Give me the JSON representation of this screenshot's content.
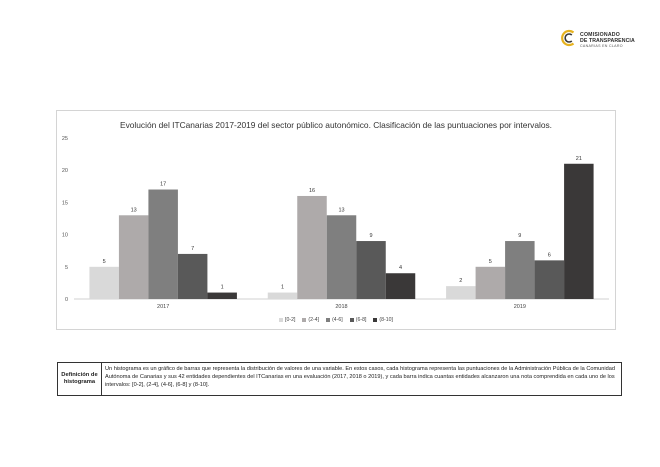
{
  "header": {
    "logo_line1": "COMISIONADO",
    "logo_line2": "DE TRANSPARENCIA",
    "logo_line3": "CANARIAS EN CLARO",
    "logo_colors": {
      "gold": "#e6b21f",
      "dark": "#3a3a3a"
    }
  },
  "chart_data": {
    "type": "bar",
    "title": "Evolución del ITCanarias 2017-2019 del sector público autonómico. Clasificación de las puntuaciones por intervalos.",
    "categories": [
      "2017",
      "2018",
      "2019"
    ],
    "series": [
      {
        "name": "[0-2]",
        "color": "#d9d9d9",
        "values": [
          5,
          1,
          2
        ]
      },
      {
        "name": "(2-4]",
        "color": "#aeaaaa",
        "values": [
          13,
          16,
          5
        ]
      },
      {
        "name": "(4-6]",
        "color": "#7f7f7f",
        "values": [
          17,
          13,
          9
        ]
      },
      {
        "name": "(6-8]",
        "color": "#595959",
        "values": [
          7,
          9,
          6
        ]
      },
      {
        "name": "(8-10]",
        "color": "#3a3838",
        "values": [
          1,
          4,
          21
        ]
      }
    ],
    "ylim": [
      0,
      25
    ],
    "yticks": [
      0,
      5,
      10,
      15,
      20,
      25
    ],
    "grid": false,
    "legend_position": "bottom",
    "data_labels": true
  },
  "definition": {
    "label": "Definición de histograma",
    "text": "Un histograma es un gráfico de barras que representa la distribución de valores de una variable. En estos casos, cada histograma representa las puntuaciones de la Administración Pública de la Comunidad Autónoma de Canarias y sus 42 entidades dependientes del ITCanarias en una evaluación (2017, 2018 o 2019), y cada barra indica cuantas entidades alcanzaron una nota comprendida en cada uno de los intervalos: [0-2], (2-4], (4-6], (6-8] y (8-10]."
  }
}
